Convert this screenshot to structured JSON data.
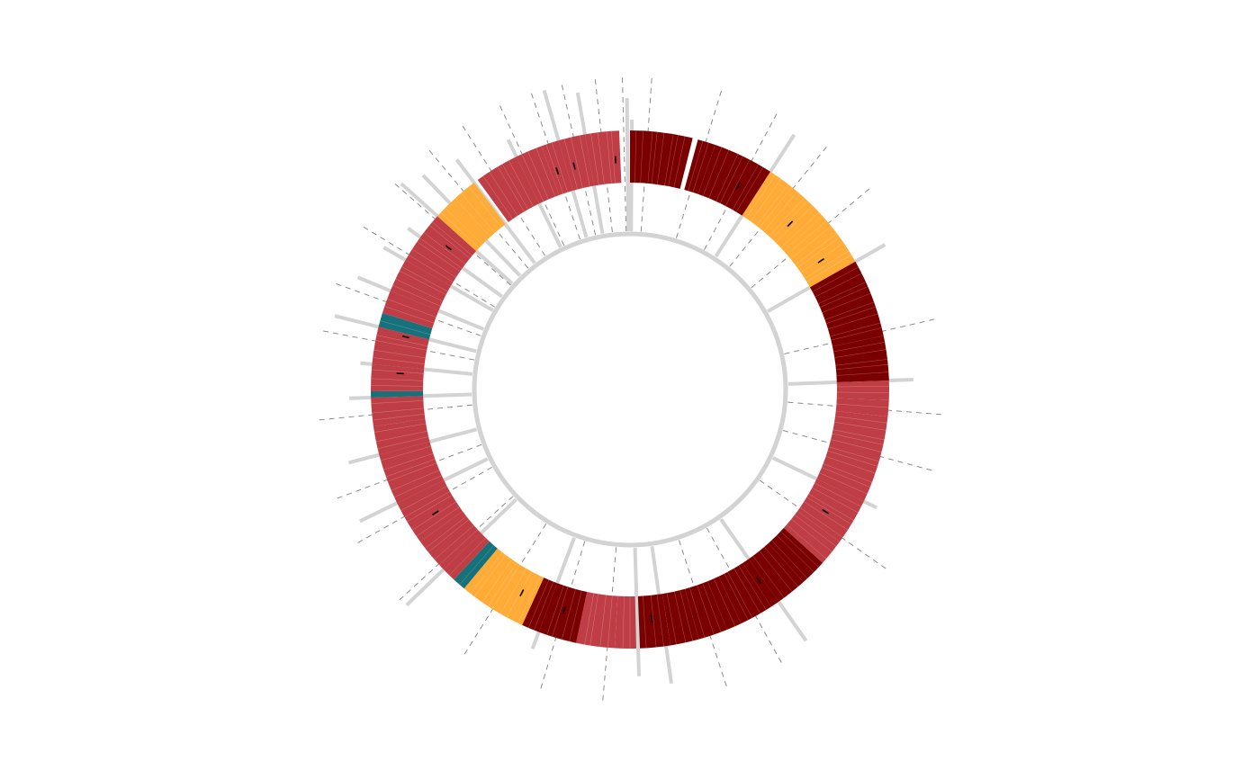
{
  "chart_data": {
    "type": "circular-segment",
    "title": "",
    "legend": "none",
    "colors": {
      "dark_red": "#7a0000",
      "red": "#bf3e45",
      "orange": "#ffab38",
      "teal": "#17717a",
      "guide_gray": "#d3d3d3",
      "dash_gray": "#808080"
    },
    "segments": [
      {
        "start": 0,
        "end": 7,
        "color_key": "dark_red"
      },
      {
        "start": 7.6,
        "end": 9.6,
        "color_key": "dark_red"
      },
      {
        "start": 9.6,
        "end": 16.4,
        "color_key": "dark_red"
      },
      {
        "start": 16.4,
        "end": 24,
        "color_key": "orange"
      },
      {
        "start": 24,
        "end": 30.2,
        "color_key": "orange"
      },
      {
        "start": 30.2,
        "end": 39,
        "color_key": "dark_red"
      },
      {
        "start": 39,
        "end": 44,
        "color_key": "dark_red"
      },
      {
        "start": 44,
        "end": 46.2,
        "color_key": "red"
      },
      {
        "start": 46.2,
        "end": 48,
        "color_key": "red"
      },
      {
        "start": 48,
        "end": 57.8,
        "color_key": "red"
      },
      {
        "start": 57.8,
        "end": 63,
        "color_key": "red"
      },
      {
        "start": 63,
        "end": 66,
        "color_key": "red"
      },
      {
        "start": 66,
        "end": 69,
        "color_key": "dark_red"
      },
      {
        "start": 69,
        "end": 72.5,
        "color_key": "dark_red"
      },
      {
        "start": 72.5,
        "end": 73.5,
        "color_key": "dark_red"
      },
      {
        "start": 73.5,
        "end": 77.3,
        "color_key": "dark_red"
      },
      {
        "start": 77.3,
        "end": 79,
        "color_key": "dark_red"
      },
      {
        "start": 79,
        "end": 82.3,
        "color_key": "dark_red"
      },
      {
        "start": 82.3,
        "end": 85.5,
        "color_key": "dark_red"
      },
      {
        "start": 85.5,
        "end": 88.9,
        "color_key": "dark_red"
      },
      {
        "start": 89.3,
        "end": 91.7,
        "color_key": "red"
      },
      {
        "start": 91.7,
        "end": 96,
        "color_key": "red"
      },
      {
        "start": 96,
        "end": 100.3,
        "color_key": "dark_red"
      },
      {
        "start": 100.3,
        "end": 102.3,
        "color_key": "dark_red"
      },
      {
        "start": 102.3,
        "end": 103.5,
        "color_key": "orange"
      },
      {
        "start": 103.5,
        "end": 109.9,
        "color_key": "orange"
      },
      {
        "start": 109.9,
        "end": 111.4,
        "color_key": "teal"
      },
      {
        "start": 111.4,
        "end": 113,
        "color_key": "red"
      },
      {
        "start": 113,
        "end": 117,
        "color_key": "red"
      },
      {
        "start": 117,
        "end": 122,
        "color_key": "red"
      },
      {
        "start": 122,
        "end": 127.7,
        "color_key": "red"
      },
      {
        "start": 127.7,
        "end": 130.9,
        "color_key": "red"
      },
      {
        "start": 130.9,
        "end": 134.1,
        "color_key": "red"
      },
      {
        "start": 134.1,
        "end": 134.8,
        "color_key": "teal"
      },
      {
        "start": 134.8,
        "end": 137.8,
        "color_key": "red"
      },
      {
        "start": 137.8,
        "end": 142,
        "color_key": "red"
      },
      {
        "start": 142,
        "end": 143.6,
        "color_key": "teal"
      },
      {
        "start": 143.6,
        "end": 146.2,
        "color_key": "red"
      },
      {
        "start": 146.2,
        "end": 150,
        "color_key": "red"
      },
      {
        "start": 150,
        "end": 156,
        "color_key": "red"
      },
      {
        "start": 156,
        "end": 158,
        "color_key": "orange"
      },
      {
        "start": 158,
        "end": 161.5,
        "color_key": "orange"
      },
      {
        "start": 162,
        "end": 167,
        "color_key": "red"
      },
      {
        "start": 167,
        "end": 170,
        "color_key": "red"
      },
      {
        "start": 170,
        "end": 172,
        "color_key": "red"
      },
      {
        "start": 172,
        "end": 175,
        "color_key": "red"
      },
      {
        "start": 175,
        "end": 178.8,
        "color_key": "red"
      }
    ],
    "radial_guides": [
      0.2,
      16.4,
      30.2,
      44,
      57.8,
      72.5,
      86,
      89.1,
      100.3,
      113,
      122,
      127.7,
      134.1,
      137.8,
      142,
      146.2,
      150,
      153,
      156,
      158,
      161.5,
      167,
      172,
      175,
      179.7
    ],
    "dashed_guides": [
      2,
      8.5,
      14,
      19.5,
      25,
      38.5,
      47.3,
      52.5,
      62.5,
      75.5,
      81,
      92.5,
      98.3,
      106,
      113.8,
      120.3,
      124.8,
      132.2,
      140.4,
      144.9,
      150.7,
      155.6,
      160,
      163.8,
      167.7,
      170.8,
      173.7,
      176.8,
      179.3
    ],
    "tick_marks": [
      14,
      22,
      28,
      61,
      73,
      87.3,
      98.3,
      104,
      118.8,
      137,
      141.6,
      154,
      170.8,
      173,
      178.2
    ]
  }
}
